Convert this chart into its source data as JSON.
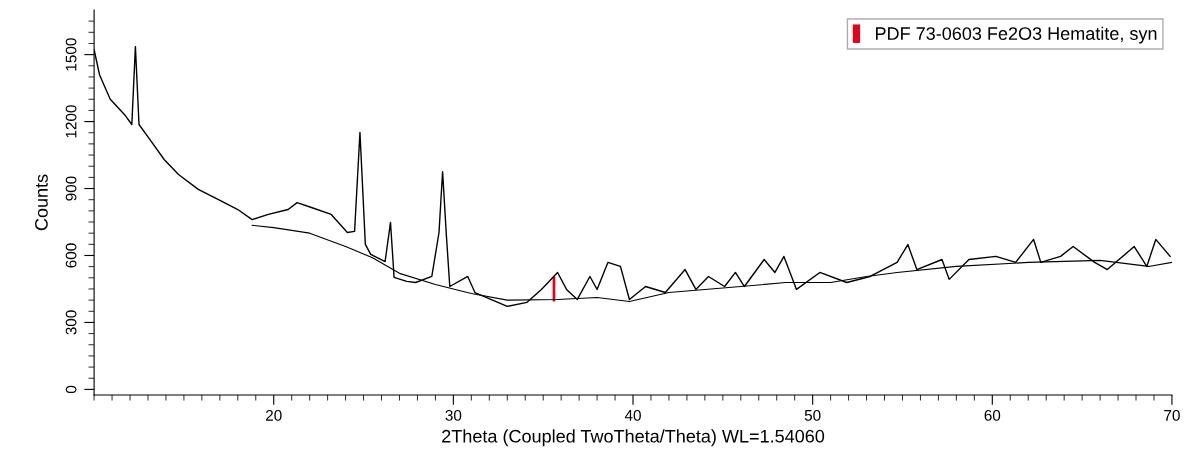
{
  "chart_data": {
    "type": "line",
    "xlabel": "2Theta (Coupled TwoTheta/Theta) WL=1.54060",
    "ylabel": "Counts",
    "xlim": [
      10,
      70
    ],
    "xticks": [
      20,
      30,
      40,
      50,
      60,
      70
    ],
    "ylim": [
      -25,
      1700
    ],
    "yticks": [
      0,
      300,
      600,
      900,
      1200,
      1500
    ],
    "grid": false,
    "legend": "top right",
    "marker": "none",
    "line_style": "solid",
    "series": [
      {
        "color": "#000000",
        "x": [
          10.0,
          10.3,
          10.9,
          11.7,
          12.1,
          12.3,
          12.5,
          13.1,
          13.9,
          14.7,
          15.8,
          16.9,
          18.0,
          18.8,
          19.7,
          20.8,
          21.3,
          22.1,
          23.2,
          24.1,
          24.5,
          24.8,
          25.1,
          25.4,
          26.2,
          26.5,
          26.7,
          27.4,
          27.9,
          28.8,
          29.2,
          29.4,
          29.6,
          29.8,
          30.8,
          31.2,
          33.0,
          34.1,
          34.9,
          35.8,
          36.3,
          36.9,
          37.6,
          38.0,
          38.6,
          39.3,
          39.8,
          40.7,
          41.8,
          42.9,
          43.5,
          44.2,
          45.1,
          45.7,
          46.2,
          47.3,
          47.9,
          48.4,
          49.1,
          50.4,
          51.9,
          53.2,
          54.7,
          55.3,
          55.8,
          57.2,
          57.6,
          58.7,
          60.2,
          61.3,
          62.3,
          62.7,
          63.8,
          64.5,
          65.7,
          66.4,
          67.9,
          68.6,
          69.1,
          69.9
        ],
        "values": [
          1523,
          1410,
          1300,
          1231,
          1187,
          1536,
          1187,
          1120,
          1030,
          963,
          896,
          851,
          806,
          761,
          784,
          806,
          837,
          815,
          784,
          703,
          708,
          1151,
          650,
          605,
          573,
          748,
          502,
          484,
          479,
          506,
          703,
          976,
          703,
          461,
          506,
          434,
          372,
          390,
          448,
          524,
          448,
          403,
          506,
          448,
          569,
          551,
          403,
          461,
          434,
          537,
          448,
          506,
          461,
          524,
          461,
          582,
          524,
          596,
          448,
          524,
          479,
          506,
          569,
          649,
          537,
          582,
          493,
          582,
          596,
          569,
          672,
          569,
          596,
          640,
          569,
          537,
          640,
          551,
          672,
          596
        ]
      },
      {
        "color": "#000000",
        "x": [
          18.8,
          20.0,
          22.0,
          24.0,
          25.5,
          27.0,
          29.0,
          31.0,
          33.0,
          35.8,
          38.0,
          39.8,
          42.0,
          46.0,
          48.5,
          51.0,
          53.0,
          54.7,
          58.0,
          62.0,
          66.0,
          68.7,
          70.0
        ],
        "values": [
          735,
          725,
          700,
          640,
          590,
          520,
          470,
          430,
          400,
          403,
          412,
          394,
          434,
          461,
          479,
          479,
          506,
          524,
          551,
          569,
          578,
          551,
          569
        ]
      },
      {
        "type": "bar",
        "name": "PDF 73-0603 Fe2O3 Hematite, syn",
        "color": "#e8001c",
        "x": [
          35.6
        ],
        "values": [
          112
        ],
        "base": [
          394
        ]
      }
    ]
  }
}
